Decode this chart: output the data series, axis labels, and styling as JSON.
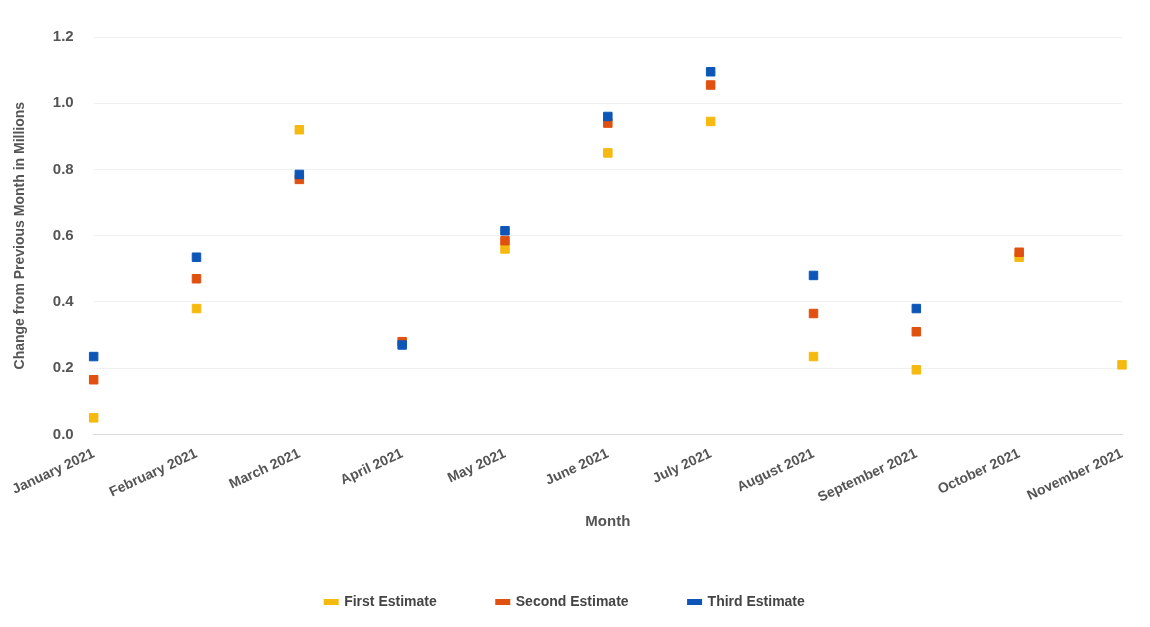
{
  "chart_data": {
    "type": "scatter",
    "xlabel": "Month",
    "ylabel": "Change from Previous Month in Millions",
    "categories": [
      "January 2021",
      "February 2021",
      "March 2021",
      "April 2021",
      "May 2021",
      "June 2021",
      "July 2021",
      "August 2021",
      "September 2021",
      "October 2021",
      "November 2021"
    ],
    "series": [
      {
        "name": "First Estimate",
        "color": "#f5b90f",
        "values": [
          0.05,
          0.38,
          0.92,
          null,
          0.56,
          0.85,
          0.945,
          0.235,
          0.195,
          0.535,
          0.21
        ]
      },
      {
        "name": "Second Estimate",
        "color": "#e0500f",
        "values": [
          0.165,
          0.47,
          0.77,
          0.28,
          0.585,
          0.94,
          1.055,
          0.365,
          0.31,
          0.55,
          null
        ]
      },
      {
        "name": "Third Estimate",
        "color": "#0d56b8",
        "values": [
          0.235,
          0.535,
          0.785,
          0.27,
          0.615,
          0.96,
          1.095,
          0.48,
          0.38,
          null,
          null
        ]
      }
    ],
    "ylim": [
      0,
      1.2
    ],
    "yticks": [
      {
        "value": 0,
        "label": "0.0"
      },
      {
        "value": 0.2,
        "label": "0.2"
      },
      {
        "value": 0.4,
        "label": "0.4"
      },
      {
        "value": 0.6,
        "label": "0.6"
      },
      {
        "value": 0.8,
        "label": "0.8"
      },
      {
        "value": 1,
        "label": "1.0"
      },
      {
        "value": 1.2,
        "label": "1.2"
      }
    ],
    "grid": "y",
    "legend": "bottom",
    "marker": "square"
  }
}
